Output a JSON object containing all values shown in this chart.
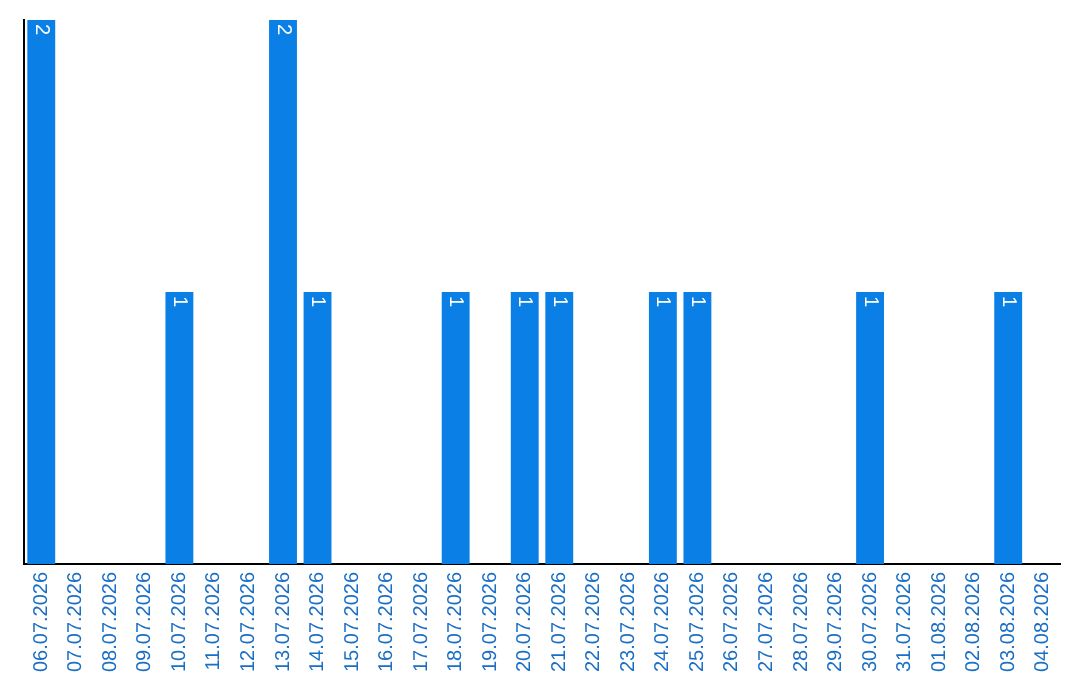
{
  "chart_data": {
    "type": "bar",
    "categories": [
      "06.07.2026",
      "07.07.2026",
      "08.07.2026",
      "09.07.2026",
      "10.07.2026",
      "11.07.2026",
      "12.07.2026",
      "13.07.2026",
      "14.07.2026",
      "15.07.2026",
      "16.07.2026",
      "17.07.2026",
      "18.07.2026",
      "19.07.2026",
      "20.07.2026",
      "21.07.2026",
      "22.07.2026",
      "23.07.2026",
      "24.07.2026",
      "25.07.2026",
      "26.07.2026",
      "27.07.2026",
      "28.07.2026",
      "29.07.2026",
      "30.07.2026",
      "31.07.2026",
      "01.08.2026",
      "02.08.2026",
      "03.08.2026",
      "04.08.2026"
    ],
    "values": [
      2,
      0,
      0,
      0,
      1,
      0,
      0,
      2,
      1,
      0,
      0,
      0,
      1,
      0,
      1,
      1,
      0,
      0,
      1,
      1,
      0,
      0,
      0,
      0,
      1,
      0,
      0,
      0,
      1,
      0
    ],
    "value_labels": [
      "2",
      null,
      null,
      null,
      "1",
      null,
      null,
      "2",
      "1",
      null,
      null,
      null,
      "1",
      null,
      "1",
      "1",
      null,
      null,
      "1",
      "1",
      null,
      null,
      null,
      null,
      "1",
      null,
      null,
      null,
      "1",
      null
    ],
    "color": "#0a7fe6",
    "ylim": [
      0,
      2
    ],
    "tick_labels": "x",
    "grid": false,
    "legend": false
  }
}
